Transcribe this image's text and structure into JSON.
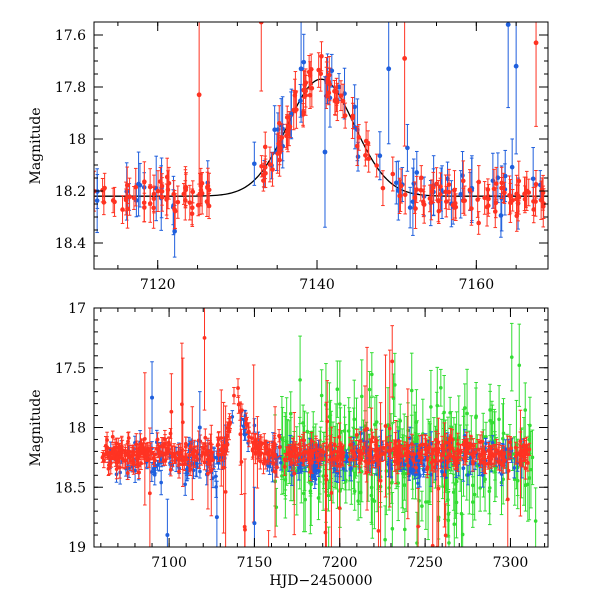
{
  "chart_data": [
    {
      "type": "scatter",
      "panel": "top",
      "xlabel": "",
      "ylabel": "Magnitude",
      "xlim": [
        7112,
        7169
      ],
      "ylim": [
        17.55,
        18.5
      ],
      "y_inverted": true,
      "x_ticks": [
        7120,
        7140,
        7160
      ],
      "y_ticks": [
        17.6,
        17.8,
        18,
        18.2,
        18.4
      ],
      "y_tick_labels": [
        "17.6",
        "17.8",
        "18",
        "18.2",
        "18.4"
      ],
      "model": {
        "name": "microlensing model",
        "color": "#000000",
        "t0": 7140.5,
        "baseline_mag": 18.22,
        "peak_mag": 17.77,
        "width_days": 4.2
      },
      "series": [
        {
          "name": "red survey",
          "color": "#ff3322",
          "n_points": 200
        },
        {
          "name": "blue survey",
          "color": "#1f5fdd",
          "n_points": 70
        }
      ],
      "notable_points": [
        {
          "x": 7125.2,
          "y": 17.83,
          "series": "red"
        },
        {
          "x": 7133.0,
          "y": 17.55,
          "series": "red"
        },
        {
          "x": 7138.0,
          "y": 17.73,
          "series": "blue"
        },
        {
          "x": 7141.0,
          "y": 18.05,
          "series": "blue"
        },
        {
          "x": 7149.0,
          "y": 17.73,
          "series": "blue"
        },
        {
          "x": 7151.0,
          "y": 17.69,
          "series": "red"
        },
        {
          "x": 7164.0,
          "y": 17.56,
          "series": "blue"
        },
        {
          "x": 7165.0,
          "y": 17.72,
          "series": "blue"
        },
        {
          "x": 7167.5,
          "y": 17.63,
          "series": "red"
        }
      ]
    },
    {
      "type": "scatter",
      "panel": "bottom",
      "xlabel": "HJD−2450000",
      "ylabel": "Magnitude",
      "xlim": [
        7056,
        7322
      ],
      "ylim": [
        17,
        19
      ],
      "y_inverted": true,
      "x_ticks": [
        7100,
        7150,
        7200,
        7250,
        7300
      ],
      "y_ticks": [
        17,
        17.5,
        18,
        18.5,
        19
      ],
      "y_tick_labels": [
        "17",
        "17.5",
        "18",
        "18.5",
        "19"
      ],
      "series": [
        {
          "name": "red survey",
          "color": "#ff3322",
          "x_range": [
            7060,
            7312
          ],
          "baseline": 18.25
        },
        {
          "name": "blue survey",
          "color": "#1f5fdd",
          "x_range": [
            7064,
            7308
          ],
          "baseline": 18.3
        },
        {
          "name": "green survey",
          "color": "#33dd33",
          "x_range": [
            7162,
            7315
          ],
          "baseline": 18.25
        }
      ],
      "event": {
        "t0": 7140.5,
        "peak_mag": 17.77,
        "baseline_mag": 18.22
      }
    }
  ]
}
